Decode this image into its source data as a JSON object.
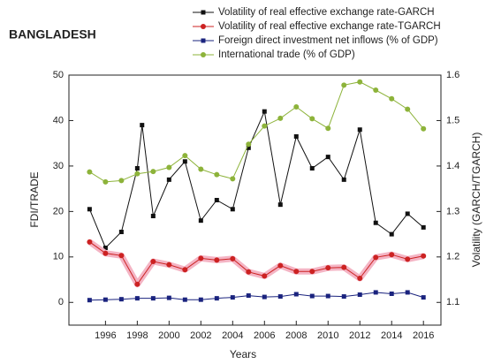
{
  "chart_data": {
    "type": "line",
    "title": "BANGLADESH",
    "x_label": "Years",
    "y_label": "FDI/TRADE",
    "y2_label": "Volatility (GARCH/TGARCH)",
    "x": [
      1995,
      1996,
      1997,
      1998,
      1999,
      2000,
      2001,
      2002,
      2003,
      2004,
      2005,
      2006,
      2007,
      2008,
      2009,
      2010,
      2011,
      2012,
      2013,
      2014,
      2015,
      2016
    ],
    "xlim": [
      1993.7,
      2017.1
    ],
    "xticks": [
      1996,
      1998,
      2000,
      2002,
      2004,
      2006,
      2008,
      2010,
      2012,
      2014,
      2016
    ],
    "ylim": [
      -5,
      50
    ],
    "yticks": [
      0,
      10,
      20,
      30,
      40,
      50
    ],
    "y2lim": [
      1.05,
      1.6
    ],
    "y2ticks": [
      1.1,
      1.2,
      1.3,
      1.4,
      1.5,
      1.6
    ],
    "series": [
      {
        "name": "Volatility of real effective exchange rate-GARCH",
        "color": "#111111",
        "marker": "square",
        "axis": "y2",
        "x": [
          1995,
          1996,
          1997,
          1998,
          1998.3,
          1999,
          2000,
          2001,
          2002,
          2003,
          2004,
          2005,
          2006,
          2007,
          2008,
          2009,
          2010,
          2011,
          2012,
          2013,
          2014,
          2015,
          2016
        ],
        "values": [
          1.305,
          1.22,
          1.255,
          1.395,
          1.49,
          1.29,
          1.37,
          1.41,
          1.28,
          1.325,
          1.305,
          1.44,
          1.52,
          1.315,
          1.465,
          1.395,
          1.42,
          1.37,
          1.48,
          1.275,
          1.25,
          1.295,
          1.265
        ]
      },
      {
        "name": "Volatility of real effective exchange rate-TGARCH",
        "color": "#cc2222",
        "marker": "circle",
        "axis": "y2",
        "values": [
          1.233,
          1.208,
          1.203,
          1.14,
          1.19,
          1.183,
          1.172,
          1.197,
          1.193,
          1.196,
          1.167,
          1.158,
          1.181,
          1.168,
          1.168,
          1.176,
          1.177,
          1.153,
          1.199,
          1.205,
          1.195,
          1.202
        ]
      },
      {
        "name": "Foreign direct investment net inflows (% of GDP)",
        "color": "#1a237e",
        "marker": "square",
        "values": [
          0.5,
          0.6,
          0.7,
          0.9,
          0.9,
          1.0,
          0.6,
          0.6,
          0.9,
          1.1,
          1.5,
          1.2,
          1.3,
          1.8,
          1.4,
          1.4,
          1.3,
          1.7,
          2.2,
          1.9,
          2.2,
          1.1
        ]
      },
      {
        "name": "International trade (% of GDP)",
        "color": "#8db33a",
        "marker": "circle",
        "values": [
          28.7,
          26.5,
          26.8,
          28.3,
          28.8,
          29.7,
          32.3,
          29.3,
          28.1,
          27.2,
          34.8,
          38.8,
          40.5,
          43.0,
          40.4,
          38.3,
          47.8,
          48.5,
          46.7,
          44.8,
          42.5,
          38.2
        ]
      }
    ]
  }
}
